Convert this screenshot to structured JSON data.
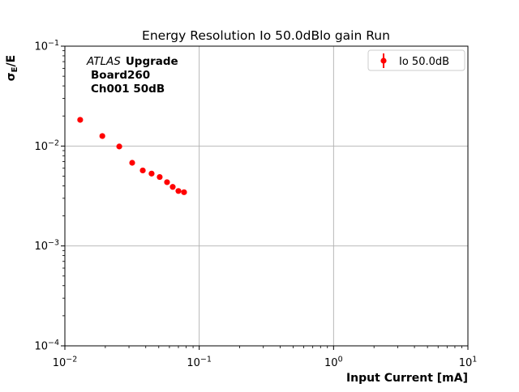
{
  "figure": {
    "title": "Energy Resolution Io 50.0dBlo gain Run",
    "background": "#ffffff"
  },
  "annotation": {
    "line1_italic": "ATLAS",
    "line1_bold": "Upgrade",
    "line2": "Board260",
    "line3": "Ch001 50dB"
  },
  "axes": {
    "ylabel_base": "σ",
    "ylabel_sub": "E",
    "ylabel_suffix": "/E",
    "xlabel": "Input Current [mA]"
  },
  "colors": {
    "marker": "#ff0000",
    "grid": "#b0b0b0",
    "axis": "#000000",
    "legend_border": "#cccccc",
    "background": "#ffffff"
  },
  "chart_data": {
    "type": "scatter",
    "title": "Energy Resolution Io 50.0dBlo gain Run",
    "xlabel": "Input Current [mA]",
    "ylabel": "σE/E",
    "xscale": "log",
    "yscale": "log",
    "xlim": [
      0.01,
      10
    ],
    "ylim": [
      0.0001,
      0.1
    ],
    "grid": true,
    "x_tick_exponents": [
      -2,
      -1,
      0,
      1
    ],
    "y_tick_exponents": [
      -1,
      -2,
      -3,
      -4
    ],
    "legend": {
      "position": "upper right",
      "entries": [
        "Io 50.0dB"
      ]
    },
    "series": [
      {
        "name": "Io 50.0dB",
        "color": "#ff0000",
        "marker": "circle",
        "style": "errorbar",
        "x": [
          0.013,
          0.019,
          0.0254,
          0.0317,
          0.038,
          0.0442,
          0.0508,
          0.0576,
          0.0635,
          0.07,
          0.0771
        ],
        "y": [
          0.0183,
          0.0126,
          0.0099,
          0.0068,
          0.0057,
          0.0053,
          0.0049,
          0.00435,
          0.0039,
          0.00355,
          0.00345
        ],
        "yerr": [
          0.0006,
          0.0004,
          0.0003,
          0.0002,
          0.00018,
          0.00016,
          0.00015,
          0.00013,
          0.00012,
          0.00011,
          0.00011
        ]
      }
    ],
    "annotation": {
      "lines": [
        "ATLAS Upgrade",
        "Board260",
        "Ch001 50dB"
      ]
    }
  }
}
